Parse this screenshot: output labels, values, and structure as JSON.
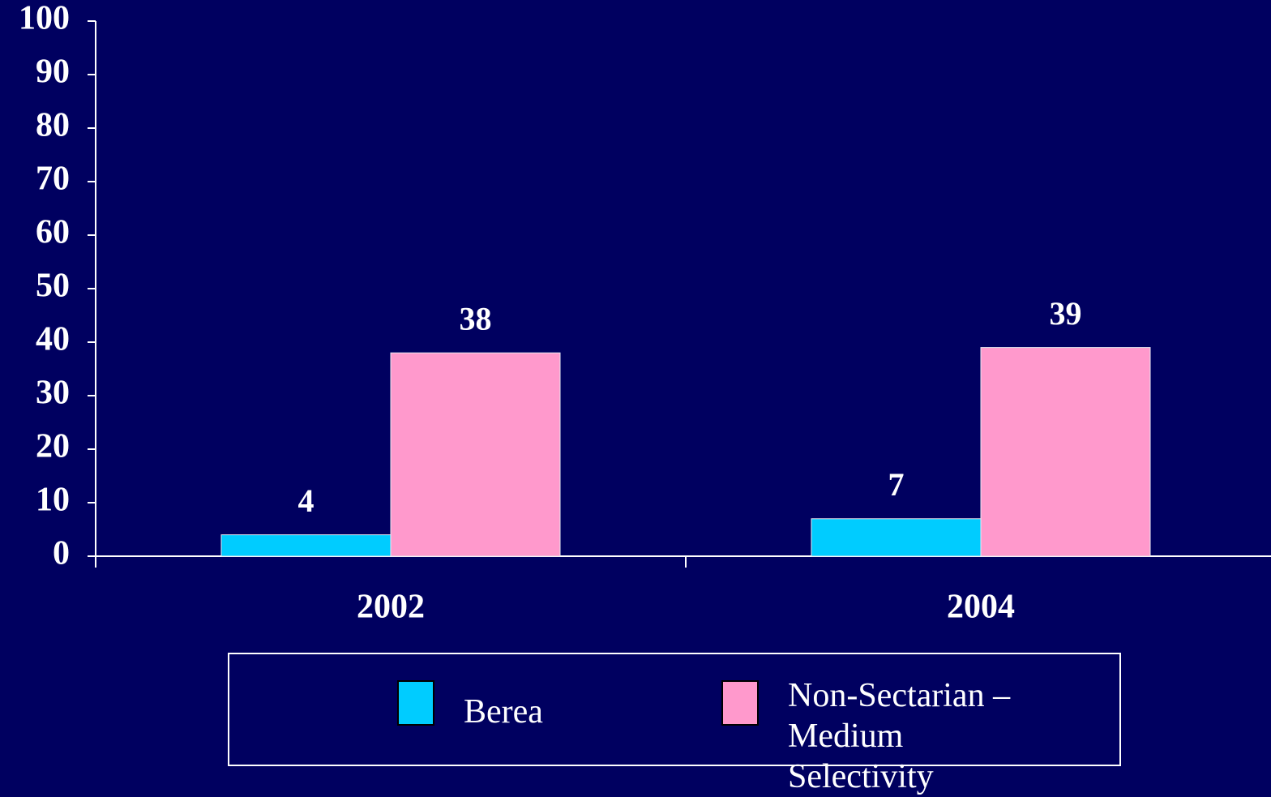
{
  "chart_data": {
    "type": "bar",
    "categories": [
      "2002",
      "2004"
    ],
    "series": [
      {
        "name": "Berea",
        "color": "#00ccff",
        "values": [
          4,
          7
        ]
      },
      {
        "name": "Non-Sectarian – Medium Selectivity",
        "color": "#ff99cc",
        "values": [
          38,
          39
        ]
      }
    ],
    "ylim": [
      0,
      100
    ],
    "yticks": [
      0,
      10,
      20,
      30,
      40,
      50,
      60,
      70,
      80,
      90,
      100
    ],
    "grid": false
  }
}
